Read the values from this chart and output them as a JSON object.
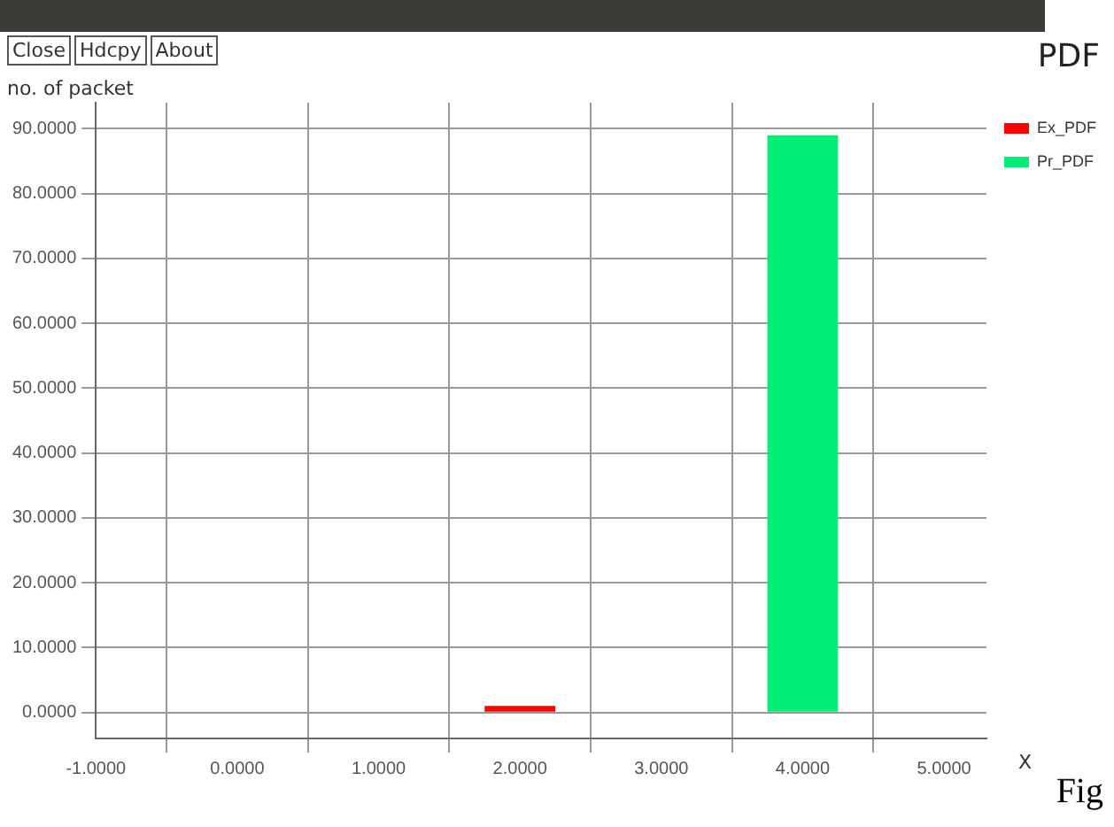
{
  "chart_data": {
    "type": "bar",
    "title": "PDF",
    "ylabel": "no. of packet",
    "xlabel": "X",
    "annotations": [
      "Close",
      "Hdcpy",
      "About",
      "Fig"
    ],
    "series": [
      {
        "name": "Ex_PDF",
        "color": "#ff0000",
        "x": [
          2
        ],
        "values": [
          1
        ]
      },
      {
        "name": "Pr_PDF",
        "color": "#00ee77",
        "x": [
          4
        ],
        "values": [
          89
        ]
      }
    ],
    "xlim": [
      -1,
      5.3
    ],
    "xticks": [
      {
        "value": -1,
        "label": "-1.0000"
      },
      {
        "value": 0,
        "label": "0.0000"
      },
      {
        "value": 1,
        "label": "1.0000"
      },
      {
        "value": 2,
        "label": "2.0000"
      },
      {
        "value": 3,
        "label": "3.0000"
      },
      {
        "value": 4,
        "label": "4.0000"
      },
      {
        "value": 5,
        "label": "5.0000"
      }
    ],
    "ylim": [
      -4,
      94
    ],
    "yticks": [
      {
        "value": 0,
        "label": "0.0000"
      },
      {
        "value": 10,
        "label": "10.0000"
      },
      {
        "value": 20,
        "label": "20.0000"
      },
      {
        "value": 30,
        "label": "30.0000"
      },
      {
        "value": 40,
        "label": "40.0000"
      },
      {
        "value": 50,
        "label": "50.0000"
      },
      {
        "value": 60,
        "label": "60.0000"
      },
      {
        "value": 70,
        "label": "70.0000"
      },
      {
        "value": 80,
        "label": "80.0000"
      },
      {
        "value": 90,
        "label": "90.0000"
      }
    ],
    "grid": true,
    "legend": "top right"
  }
}
